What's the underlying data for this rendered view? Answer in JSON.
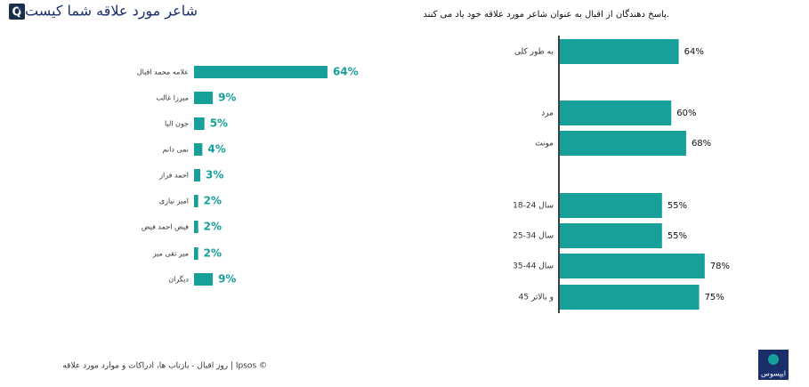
{
  "badge": "Q",
  "footer": "روز اقبال - بازتاب ها، ادراکات و موارد مورد علاقه | Ipsos ©",
  "logo": "ایپسوس",
  "chart_data": [
    {
      "type": "bar",
      "title": "شاعر مورد علاقه شما کیست؟",
      "color": "#17a09a",
      "categories": [
        "علامه محمد اقبال",
        "میرزا غالب",
        "جون الیا",
        "نمی دانم",
        "احمد فراز",
        "امیر نیازی",
        "فیض احمد فیض",
        "میر تقی میر",
        "دیگران"
      ],
      "values": [
        64,
        9,
        5,
        4,
        3,
        2,
        2,
        2,
        9
      ],
      "value_labels": [
        "64%",
        "9%",
        "5%",
        "4%",
        "3%",
        "2%",
        "2%",
        "2%",
        "9%"
      ],
      "xlim": [
        0,
        70
      ]
    },
    {
      "type": "bar",
      "title": "پاسخ دهندگان از اقبال به عنوان شاعر مورد علاقه خود یاد می کنند.",
      "color": "#17a09a",
      "categories": [
        "به طور کلی",
        "مرد",
        "مونث",
        "18-24 سال",
        "25-34 سال",
        "35-44 سال",
        "45 و بالاتر"
      ],
      "values": [
        64,
        60,
        68,
        55,
        55,
        78,
        75
      ],
      "value_labels": [
        "64%",
        "60%",
        "68%",
        "55%",
        "55%",
        "78%",
        "75%"
      ],
      "xlim": [
        0,
        80
      ]
    }
  ]
}
